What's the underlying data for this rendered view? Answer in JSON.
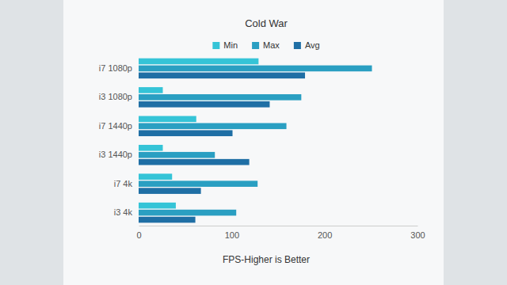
{
  "chart_data": {
    "type": "bar",
    "orientation": "horizontal",
    "title": "Cold War",
    "xlabel": "FPS-Higher is Better",
    "categories": [
      "i7 1080p",
      "i3 1080p",
      "i7 1440p",
      "i3 1440p",
      "i7 4k",
      "i3 4k"
    ],
    "series": [
      {
        "name": "Min",
        "color": "#35c4d7",
        "values": [
          129,
          26,
          62,
          26,
          36,
          40
        ]
      },
      {
        "name": "Max",
        "color": "#2a9fc2",
        "values": [
          251,
          175,
          159,
          82,
          128,
          105
        ]
      },
      {
        "name": "Avg",
        "color": "#1f6fa5",
        "values": [
          179,
          141,
          101,
          119,
          67,
          61
        ]
      }
    ],
    "xlim": [
      0,
      300
    ],
    "xticks": [
      0,
      100,
      200,
      300
    ],
    "legend": "top",
    "grid": false
  }
}
